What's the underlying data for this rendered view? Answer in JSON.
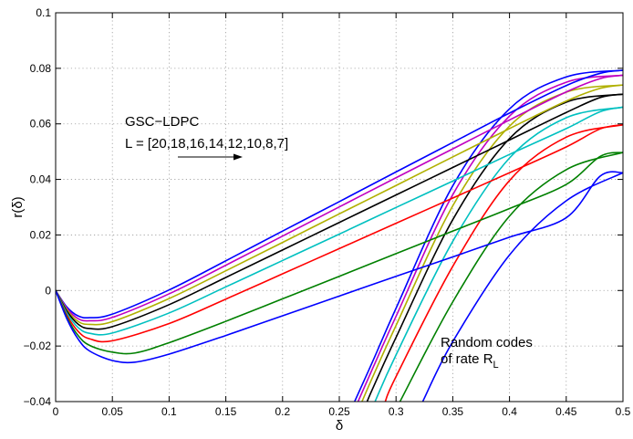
{
  "chart_data": {
    "type": "line",
    "xlabel": "δ",
    "ylabel": "r(δ)",
    "xlim": [
      0,
      0.5
    ],
    "ylim": [
      -0.04,
      0.1
    ],
    "grid": true,
    "x_ticks": [
      0,
      0.05,
      0.1,
      0.15,
      0.2,
      0.25,
      0.3,
      0.35,
      0.4,
      0.45,
      0.5
    ],
    "x_tick_labels": [
      "0",
      "0.05",
      "0.1",
      "0.15",
      "0.2",
      "0.25",
      "0.3",
      "0.35",
      "0.4",
      "0.45",
      "0.5"
    ],
    "y_ticks": [
      -0.04,
      -0.02,
      0,
      0.02,
      0.04,
      0.06,
      0.08,
      0.1
    ],
    "y_tick_labels": [
      "−0.04",
      "−0.02",
      "0",
      "0.02",
      "0.04",
      "0.06",
      "0.08",
      "0.1"
    ],
    "annotations": {
      "gsc_title": "GSC−LDPC",
      "gsc_list": "L = [20,18,16,14,12,10,8,7]",
      "random_line1": "Random codes",
      "random_line2_prefix": "of rate R",
      "random_line2_sub": "L"
    },
    "gsc_ldpc_series": [
      {
        "color": "#0000ff",
        "points": [
          [
            0,
            0
          ],
          [
            0.01,
            -0.006
          ],
          [
            0.02,
            -0.0092
          ],
          [
            0.03,
            -0.0098
          ],
          [
            0.05,
            -0.0085
          ],
          [
            0.1,
            0.0002
          ],
          [
            0.15,
            0.0107
          ],
          [
            0.2,
            0.0214
          ],
          [
            0.25,
            0.032
          ],
          [
            0.3,
            0.0427
          ],
          [
            0.35,
            0.0533
          ],
          [
            0.4,
            0.0639
          ],
          [
            0.45,
            0.0738
          ],
          [
            0.48,
            0.0782
          ],
          [
            0.5,
            0.0793
          ]
        ]
      },
      {
        "color": "#c000c0",
        "points": [
          [
            0,
            0
          ],
          [
            0.01,
            -0.0065
          ],
          [
            0.02,
            -0.0102
          ],
          [
            0.03,
            -0.0109
          ],
          [
            0.05,
            -0.0097
          ],
          [
            0.1,
            -0.0012
          ],
          [
            0.15,
            0.0091
          ],
          [
            0.2,
            0.0196
          ],
          [
            0.25,
            0.0301
          ],
          [
            0.3,
            0.0406
          ],
          [
            0.35,
            0.051
          ],
          [
            0.4,
            0.0614
          ],
          [
            0.45,
            0.0715
          ],
          [
            0.48,
            0.0763
          ],
          [
            0.5,
            0.0775
          ]
        ]
      },
      {
        "color": "#b0b000",
        "points": [
          [
            0,
            0
          ],
          [
            0.01,
            -0.007
          ],
          [
            0.02,
            -0.0112
          ],
          [
            0.03,
            -0.0122
          ],
          [
            0.05,
            -0.0112
          ],
          [
            0.1,
            -0.0029
          ],
          [
            0.15,
            0.0071
          ],
          [
            0.2,
            0.0173
          ],
          [
            0.25,
            0.0276
          ],
          [
            0.3,
            0.0378
          ],
          [
            0.35,
            0.0481
          ],
          [
            0.4,
            0.0583
          ],
          [
            0.45,
            0.0682
          ],
          [
            0.48,
            0.0728
          ],
          [
            0.5,
            0.074
          ]
        ]
      },
      {
        "color": "#000000",
        "points": [
          [
            0,
            0
          ],
          [
            0.01,
            -0.0075
          ],
          [
            0.02,
            -0.0122
          ],
          [
            0.03,
            -0.0137
          ],
          [
            0.05,
            -0.013
          ],
          [
            0.1,
            -0.0051
          ],
          [
            0.15,
            0.0047
          ],
          [
            0.2,
            0.0146
          ],
          [
            0.25,
            0.0245
          ],
          [
            0.3,
            0.0344
          ],
          [
            0.35,
            0.0443
          ],
          [
            0.4,
            0.0542
          ],
          [
            0.45,
            0.0641
          ],
          [
            0.48,
            0.0695
          ],
          [
            0.5,
            0.0707
          ]
        ]
      },
      {
        "color": "#00c0c0",
        "points": [
          [
            0,
            0
          ],
          [
            0.01,
            -0.0082
          ],
          [
            0.02,
            -0.0134
          ],
          [
            0.03,
            -0.0154
          ],
          [
            0.05,
            -0.0153
          ],
          [
            0.1,
            -0.0081
          ],
          [
            0.15,
            0.0013
          ],
          [
            0.2,
            0.0108
          ],
          [
            0.25,
            0.0203
          ],
          [
            0.3,
            0.0299
          ],
          [
            0.35,
            0.0394
          ],
          [
            0.4,
            0.049
          ],
          [
            0.45,
            0.0583
          ],
          [
            0.48,
            0.0644
          ],
          [
            0.5,
            0.066
          ]
        ]
      },
      {
        "color": "#ff0000",
        "points": [
          [
            0,
            0
          ],
          [
            0.01,
            -0.009
          ],
          [
            0.02,
            -0.0148
          ],
          [
            0.03,
            -0.0174
          ],
          [
            0.05,
            -0.0181
          ],
          [
            0.1,
            -0.0119
          ],
          [
            0.15,
            -0.0031
          ],
          [
            0.2,
            0.006
          ],
          [
            0.25,
            0.0151
          ],
          [
            0.3,
            0.0242
          ],
          [
            0.35,
            0.0333
          ],
          [
            0.4,
            0.0424
          ],
          [
            0.45,
            0.0517
          ],
          [
            0.48,
            0.0582
          ],
          [
            0.5,
            0.0597
          ]
        ]
      },
      {
        "color": "#008000",
        "points": [
          [
            0,
            0
          ],
          [
            0.01,
            -0.0097
          ],
          [
            0.02,
            -0.0163
          ],
          [
            0.03,
            -0.0198
          ],
          [
            0.05,
            -0.0222
          ],
          [
            0.07,
            -0.0225
          ],
          [
            0.1,
            -0.0188
          ],
          [
            0.15,
            -0.0111
          ],
          [
            0.2,
            -0.003
          ],
          [
            0.25,
            0.0051
          ],
          [
            0.3,
            0.0133
          ],
          [
            0.35,
            0.0214
          ],
          [
            0.4,
            0.0295
          ],
          [
            0.45,
            0.0382
          ],
          [
            0.48,
            0.0483
          ],
          [
            0.5,
            0.0497
          ]
        ]
      },
      {
        "color": "#0000ff",
        "points": [
          [
            0,
            0
          ],
          [
            0.01,
            -0.0103
          ],
          [
            0.02,
            -0.0176
          ],
          [
            0.03,
            -0.0218
          ],
          [
            0.05,
            -0.0252
          ],
          [
            0.07,
            -0.0258
          ],
          [
            0.1,
            -0.0229
          ],
          [
            0.15,
            -0.0162
          ],
          [
            0.2,
            -0.0091
          ],
          [
            0.25,
            -0.002
          ],
          [
            0.3,
            0.0051
          ],
          [
            0.35,
            0.0121
          ],
          [
            0.4,
            0.0192
          ],
          [
            0.45,
            0.0262
          ],
          [
            0.48,
            0.0412
          ],
          [
            0.5,
            0.0424
          ]
        ]
      }
    ],
    "random_code_series": [
      {
        "color": "#0000ff",
        "points": [
          [
            0.2635,
            -0.04
          ],
          [
            0.28,
            -0.025
          ],
          [
            0.3,
            -0.0064
          ],
          [
            0.35,
            0.0377
          ],
          [
            0.4,
            0.0654
          ],
          [
            0.45,
            0.0769
          ],
          [
            0.5,
            0.0793
          ]
        ]
      },
      {
        "color": "#c000c0",
        "points": [
          [
            0.2665,
            -0.04
          ],
          [
            0.28,
            -0.0275
          ],
          [
            0.3,
            -0.0093
          ],
          [
            0.35,
            0.0345
          ],
          [
            0.4,
            0.0628
          ],
          [
            0.45,
            0.075
          ],
          [
            0.5,
            0.0775
          ]
        ]
      },
      {
        "color": "#b0b000",
        "points": [
          [
            0.27,
            -0.04
          ],
          [
            0.28,
            -0.0306
          ],
          [
            0.3,
            -0.0126
          ],
          [
            0.35,
            0.0305
          ],
          [
            0.4,
            0.0592
          ],
          [
            0.45,
            0.0714
          ],
          [
            0.5,
            0.074
          ]
        ]
      },
      {
        "color": "#000000",
        "points": [
          [
            0.2745,
            -0.04
          ],
          [
            0.28,
            -0.0348
          ],
          [
            0.3,
            -0.0169
          ],
          [
            0.35,
            0.0255
          ],
          [
            0.4,
            0.0547
          ],
          [
            0.45,
            0.0678
          ],
          [
            0.5,
            0.0707
          ]
        ]
      },
      {
        "color": "#00c0c0",
        "points": [
          [
            0.2815,
            -0.04
          ],
          [
            0.3,
            -0.0232
          ],
          [
            0.35,
            0.0177
          ],
          [
            0.4,
            0.0477
          ],
          [
            0.45,
            0.0622
          ],
          [
            0.5,
            0.066
          ]
        ]
      },
      {
        "color": "#ff0000",
        "points": [
          [
            0.2905,
            -0.04
          ],
          [
            0.3,
            -0.031
          ],
          [
            0.35,
            0.0087
          ],
          [
            0.4,
            0.0396
          ],
          [
            0.45,
            0.0552
          ],
          [
            0.5,
            0.0597
          ]
        ]
      },
      {
        "color": "#008000",
        "points": [
          [
            0.3035,
            -0.04
          ],
          [
            0.35,
            -0.0041
          ],
          [
            0.4,
            0.0268
          ],
          [
            0.45,
            0.0435
          ],
          [
            0.5,
            0.0497
          ]
        ]
      },
      {
        "color": "#0000ff",
        "points": [
          [
            0.3235,
            -0.04
          ],
          [
            0.35,
            -0.0184
          ],
          [
            0.4,
            0.0128
          ],
          [
            0.45,
            0.0323
          ],
          [
            0.5,
            0.0424
          ]
        ]
      }
    ]
  }
}
